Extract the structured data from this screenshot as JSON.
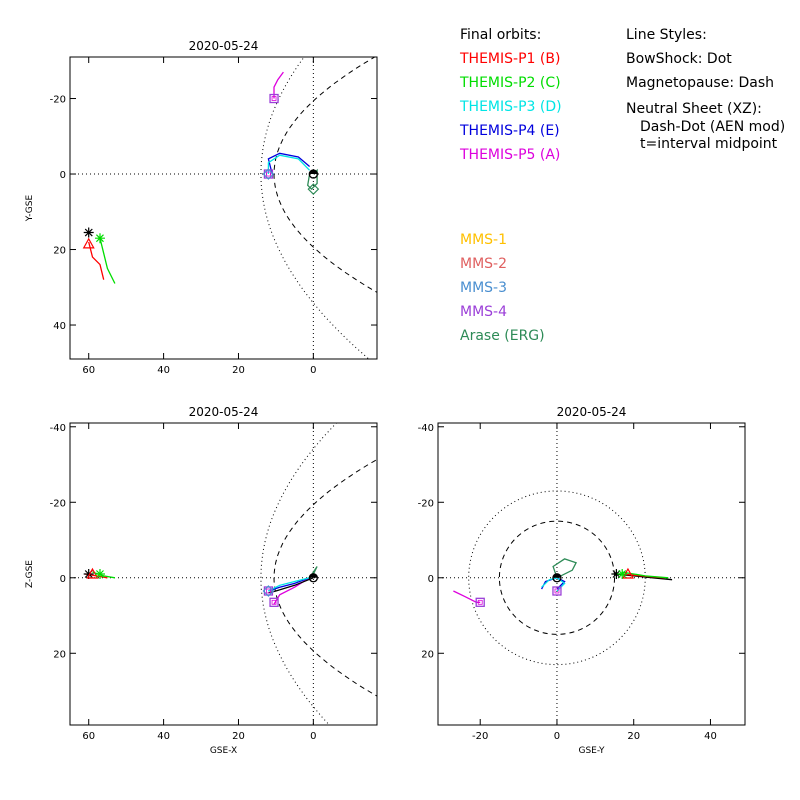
{
  "legend": {
    "orbits_title": "Final orbits:",
    "styles_title": "Line Styles:",
    "line_styles": [
      "BowShock: Dot",
      "Magnetopause: Dash",
      "Neutral Sheet (XZ):"
    ],
    "line_styles_sub": [
      "Dash-Dot (AEN mod)",
      "t=interval midpoint"
    ],
    "spacecraft": [
      {
        "label": "THEMIS-P1 (B)",
        "color": "#ff0000"
      },
      {
        "label": "THEMIS-P2 (C)",
        "color": "#00dd00"
      },
      {
        "label": "THEMIS-P3 (D)",
        "color": "#00e5e5"
      },
      {
        "label": "THEMIS-P4 (E)",
        "color": "#0000dd"
      },
      {
        "label": "THEMIS-P5 (A)",
        "color": "#dd00dd"
      }
    ],
    "mms": [
      {
        "label": "MMS-1",
        "color": "#ffc000"
      },
      {
        "label": "MMS-2",
        "color": "#e06060"
      },
      {
        "label": "MMS-3",
        "color": "#4a8fd0"
      },
      {
        "label": "MMS-4",
        "color": "#9b3fd8"
      },
      {
        "label": "Arase (ERG)",
        "color": "#2e8b57"
      }
    ]
  },
  "chart_data": [
    {
      "type": "line",
      "title": "2020-05-24",
      "xlabel": "",
      "ylabel": "Y-GSE",
      "xlim": [
        65,
        -17
      ],
      "ylim": [
        -31,
        49
      ],
      "xticks": [
        60,
        40,
        20,
        0
      ],
      "yticks": [
        -20,
        0,
        20,
        40
      ],
      "series": [
        {
          "color": "#dd00dd",
          "points": [
            [
              8,
              -27
            ],
            [
              9.5,
              -25
            ],
            [
              10.5,
              -23
            ],
            [
              10.5,
              -20
            ]
          ]
        },
        {
          "color": "#0000dd",
          "points": [
            [
              1,
              -2
            ],
            [
              4,
              -4.5
            ],
            [
              9,
              -5.5
            ],
            [
              12,
              -4
            ],
            [
              11,
              0
            ]
          ]
        },
        {
          "color": "#00e5e5",
          "points": [
            [
              1,
              -1
            ],
            [
              4,
              -4
            ],
            [
              9,
              -5
            ],
            [
              12,
              -3
            ],
            [
              12,
              0
            ]
          ]
        },
        {
          "color": "#2e8b57",
          "points": [
            [
              1,
              0
            ],
            [
              1.5,
              3
            ],
            [
              0.5,
              4
            ],
            [
              -1,
              2.5
            ],
            [
              -1,
              -1
            ],
            [
              0,
              0
            ]
          ]
        },
        {
          "color": "#ff0000",
          "points": [
            [
              60,
              18
            ],
            [
              59,
              22
            ],
            [
              57,
              24
            ],
            [
              56,
              28
            ]
          ]
        },
        {
          "color": "#00dd00",
          "points": [
            [
              57,
              17
            ],
            [
              56,
              21
            ],
            [
              55,
              25
            ],
            [
              53,
              29
            ]
          ]
        }
      ],
      "markers": [
        {
          "x": 10.5,
          "y": -20,
          "kind": "square",
          "color": "#9b3fd8"
        },
        {
          "x": 12,
          "y": 0,
          "kind": "square",
          "color": "#9b3fd8"
        },
        {
          "x": 12,
          "y": 0,
          "kind": "diamond",
          "color": "#4a8fd0"
        },
        {
          "x": 0,
          "y": 0,
          "kind": "earth",
          "color": "#000000"
        },
        {
          "x": 0,
          "y": 4,
          "kind": "diamond",
          "color": "#2e8b57"
        },
        {
          "x": 60,
          "y": 15.5,
          "kind": "star",
          "color": "#000000"
        },
        {
          "x": 60,
          "y": 18.5,
          "kind": "triangle",
          "color": "#ff0000"
        },
        {
          "x": 57,
          "y": 17,
          "kind": "star",
          "color": "#00dd00"
        }
      ],
      "boundaries": [
        {
          "style": "dash",
          "form": "xy_mp"
        },
        {
          "style": "dot",
          "form": "xy_bs"
        }
      ],
      "axis_lines": true
    },
    {
      "type": "line",
      "title": "2020-05-24",
      "xlabel": "GSE-X",
      "ylabel": "Z-GSE",
      "xlim": [
        65,
        -17
      ],
      "ylim": [
        -41,
        39
      ],
      "xticks": [
        60,
        40,
        20,
        0
      ],
      "yticks": [
        -40,
        -20,
        0,
        20
      ],
      "series": [
        {
          "color": "#dd00dd",
          "points": [
            [
              1,
              0
            ],
            [
              5,
              2.5
            ],
            [
              9,
              4.5
            ],
            [
              10.5,
              7
            ]
          ]
        },
        {
          "color": "#0000dd",
          "points": [
            [
              1,
              0
            ],
            [
              5,
              1.5
            ],
            [
              9,
              2.5
            ],
            [
              12,
              3.5
            ]
          ]
        },
        {
          "color": "#00e5e5",
          "points": [
            [
              1,
              0
            ],
            [
              5,
              1
            ],
            [
              9,
              2
            ],
            [
              12,
              3.5
            ]
          ]
        },
        {
          "color": "#2e8b57",
          "points": [
            [
              1,
              0
            ],
            [
              0,
              -1.5
            ],
            [
              -1,
              -3
            ],
            [
              0,
              -1
            ],
            [
              1,
              0
            ]
          ]
        },
        {
          "color": "#000000",
          "points": [
            [
              0,
              0
            ],
            [
              5,
              2
            ],
            [
              10,
              3.5
            ],
            [
              12,
              4
            ]
          ]
        },
        {
          "color": "#ff0000",
          "points": [
            [
              61,
              -1
            ],
            [
              58,
              -0.5
            ],
            [
              55,
              0
            ]
          ]
        },
        {
          "color": "#00dd00",
          "points": [
            [
              59,
              -1.5
            ],
            [
              56,
              -0.5
            ],
            [
              53,
              0
            ]
          ]
        }
      ],
      "markers": [
        {
          "x": 10.5,
          "y": 6.5,
          "kind": "square",
          "color": "#9b3fd8"
        },
        {
          "x": 12,
          "y": 3.5,
          "kind": "square",
          "color": "#9b3fd8"
        },
        {
          "x": 12,
          "y": 3.5,
          "kind": "diamond",
          "color": "#4a8fd0"
        },
        {
          "x": 0,
          "y": 0,
          "kind": "earth",
          "color": "#000000"
        },
        {
          "x": 60,
          "y": -1,
          "kind": "star",
          "color": "#000000"
        },
        {
          "x": 59,
          "y": -1,
          "kind": "triangle",
          "color": "#ff0000"
        },
        {
          "x": 57,
          "y": -1,
          "kind": "star",
          "color": "#00dd00"
        }
      ],
      "boundaries": [
        {
          "style": "dash",
          "form": "xz_mp"
        },
        {
          "style": "dot",
          "form": "xz_bs"
        }
      ],
      "axis_lines": true
    },
    {
      "type": "line",
      "title": "2020-05-24",
      "xlabel": "GSE-Y",
      "ylabel": "",
      "xlim": [
        -31,
        49
      ],
      "ylim": [
        -41,
        39
      ],
      "xticks": [
        -20,
        0,
        20,
        40
      ],
      "yticks": [
        -40,
        -20,
        0,
        20
      ],
      "series": [
        {
          "color": "#dd00dd",
          "points": [
            [
              -27,
              3.5
            ],
            [
              -24,
              5
            ],
            [
              -21,
              6.5
            ],
            [
              -20,
              6.5
            ]
          ]
        },
        {
          "color": "#0000dd",
          "points": [
            [
              -4,
              3
            ],
            [
              -3,
              1
            ],
            [
              0,
              0
            ],
            [
              2,
              1
            ],
            [
              0,
              3
            ]
          ]
        },
        {
          "color": "#00e5e5",
          "points": [
            [
              -4,
              2.5
            ],
            [
              -2,
              0.5
            ],
            [
              0,
              0
            ],
            [
              2,
              1.5
            ],
            [
              0,
              3.5
            ]
          ]
        },
        {
          "color": "#2e8b57",
          "points": [
            [
              0,
              0
            ],
            [
              4,
              -2
            ],
            [
              5,
              -4
            ],
            [
              2,
              -5
            ],
            [
              -1,
              -3
            ],
            [
              0,
              0
            ]
          ]
        },
        {
          "color": "#000000",
          "points": [
            [
              15,
              -1
            ],
            [
              20,
              -0.5
            ],
            [
              25,
              0
            ],
            [
              30,
              0.5
            ]
          ]
        },
        {
          "color": "#ff0000",
          "points": [
            [
              17,
              -1
            ],
            [
              22,
              -0.5
            ],
            [
              28,
              0
            ]
          ]
        },
        {
          "color": "#00dd00",
          "points": [
            [
              17,
              -1.5
            ],
            [
              23,
              -0.5
            ],
            [
              29,
              0
            ]
          ]
        }
      ],
      "markers": [
        {
          "x": -20,
          "y": 6.5,
          "kind": "square",
          "color": "#9b3fd8"
        },
        {
          "x": 0,
          "y": 3.5,
          "kind": "square",
          "color": "#9b3fd8"
        },
        {
          "x": 0,
          "y": 0,
          "kind": "earth",
          "color": "#000000"
        },
        {
          "x": 15.5,
          "y": -1,
          "kind": "star",
          "color": "#000000"
        },
        {
          "x": 18.5,
          "y": -1,
          "kind": "triangle",
          "color": "#ff0000"
        },
        {
          "x": 17,
          "y": -1,
          "kind": "star",
          "color": "#00dd00"
        }
      ],
      "boundaries": [
        {
          "style": "dash",
          "form": "circle",
          "r": 15
        },
        {
          "style": "dot",
          "form": "circle",
          "r": 23
        }
      ],
      "axis_lines": true
    }
  ]
}
